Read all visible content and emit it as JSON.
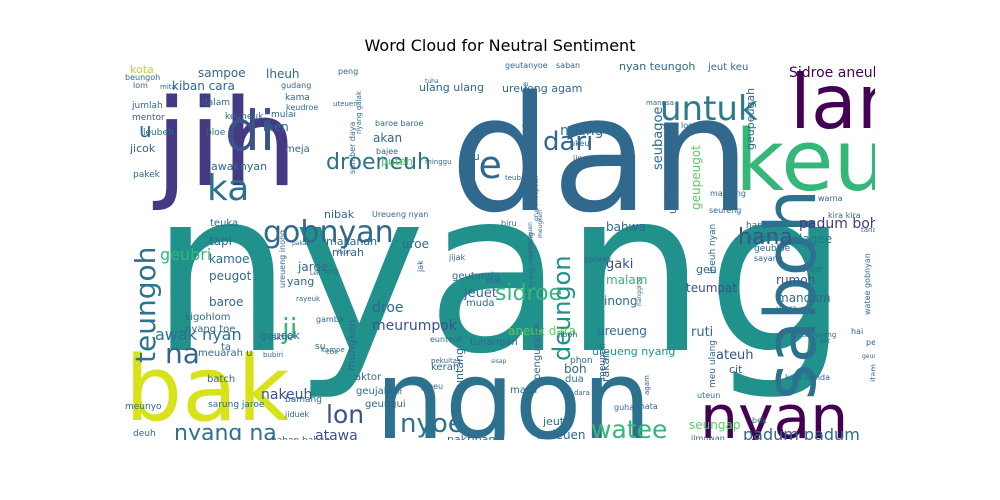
{
  "chart_data": {
    "type": "wordcloud",
    "title": "Word Cloud for Neutral Sentiment",
    "colormap": "viridis",
    "background": "#ffffff",
    "words": [
      {
        "text": "nyang",
        "color": "#21918c"
      },
      {
        "text": "dan",
        "color": "#31688e"
      },
      {
        "text": "jih",
        "color": "#443983"
      },
      {
        "text": "ngon",
        "color": "#2c728e"
      },
      {
        "text": "bak",
        "color": "#d8e219"
      },
      {
        "text": "saboh",
        "color": "#2c728e"
      },
      {
        "text": "keu",
        "color": "#35b779"
      },
      {
        "text": "lam",
        "color": "#440154"
      },
      {
        "text": "nyan",
        "color": "#440154"
      },
      {
        "text": "untuk",
        "color": "#287c8e"
      },
      {
        "text": "di",
        "color": "#3b528b"
      },
      {
        "text": "ka",
        "color": "#2c728e"
      },
      {
        "text": "le",
        "color": "#31688e"
      },
      {
        "text": "gobnyan",
        "color": "#31688e"
      },
      {
        "text": "dari",
        "color": "#31688e"
      },
      {
        "text": "droeneuh",
        "color": "#2c728e"
      },
      {
        "text": "hana",
        "color": "#3b528b"
      },
      {
        "text": "teungoh",
        "color": "#2c728e"
      },
      {
        "text": "deungon",
        "color": "#21918c"
      },
      {
        "text": "sidroe",
        "color": "#35b779"
      },
      {
        "text": "na",
        "color": "#31688e"
      },
      {
        "text": "ji",
        "color": "#35b779"
      },
      {
        "text": "lon",
        "color": "#3b528b"
      },
      {
        "text": "nyoe",
        "color": "#2c728e"
      },
      {
        "text": "watee",
        "color": "#35b779"
      },
      {
        "text": "nyang na",
        "color": "#2c728e"
      },
      {
        "text": "padum boh",
        "color": "#443983"
      },
      {
        "text": "padum padum",
        "color": "#31688e"
      },
      {
        "text": "u",
        "color": "#31688e"
      },
      {
        "text": "awak nyan",
        "color": "#2c728e"
      },
      {
        "text": "atawa",
        "color": "#3b528b"
      },
      {
        "text": "Sidroe aneuk",
        "color": "#440154"
      },
      {
        "text": "nyang ka",
        "color": "#2c728e"
      },
      {
        "text": "geubri",
        "color": "#35b779"
      },
      {
        "text": "tapi",
        "color": "#31688e"
      },
      {
        "text": "kamoe",
        "color": "#31688e"
      },
      {
        "text": "peugot",
        "color": "#31688e"
      },
      {
        "text": "nakeuh",
        "color": "#3b528b"
      },
      {
        "text": "droe",
        "color": "#31688e"
      },
      {
        "text": "meurumpok",
        "color": "#3b528b"
      },
      {
        "text": "jeuet",
        "color": "#31688e"
      },
      {
        "text": "gaki",
        "color": "#3b528b"
      },
      {
        "text": "malam",
        "color": "#35b779"
      },
      {
        "text": "ruti",
        "color": "#31688e"
      },
      {
        "text": "ureueng",
        "color": "#31688e"
      },
      {
        "text": "teumpat",
        "color": "#3b528b"
      },
      {
        "text": "mandum",
        "color": "#31688e"
      },
      {
        "text": "rumoh",
        "color": "#3b528b"
      },
      {
        "text": "lagee",
        "color": "#2c728e"
      },
      {
        "text": "ateuh",
        "color": "#3b528b"
      },
      {
        "text": "cit",
        "color": "#31688e"
      },
      {
        "text": "uroe",
        "color": "#31688e"
      },
      {
        "text": "bahwa",
        "color": "#31688e"
      },
      {
        "text": "inong",
        "color": "#31688e"
      },
      {
        "text": "aneuk dara",
        "color": "#5ec962"
      },
      {
        "text": "ureueng nyang",
        "color": "#21918c"
      },
      {
        "text": "seungap",
        "color": "#5ec962"
      },
      {
        "text": "boh",
        "color": "#31688e"
      },
      {
        "text": "rakan",
        "color": "#31688e"
      },
      {
        "text": "jaroe",
        "color": "#31688e"
      },
      {
        "text": "baroe",
        "color": "#31688e"
      },
      {
        "text": "geucok",
        "color": "#31688e"
      },
      {
        "text": "sampoe",
        "color": "#31688e"
      },
      {
        "text": "kiban cara",
        "color": "#31688e"
      },
      {
        "text": "lheuh",
        "color": "#31688e"
      },
      {
        "text": "laen",
        "color": "#31688e"
      },
      {
        "text": "akan",
        "color": "#31688e"
      },
      {
        "text": "puteh",
        "color": "#5ec962"
      },
      {
        "text": "neu",
        "color": "#31688e"
      },
      {
        "text": "awaknyan",
        "color": "#31688e"
      },
      {
        "text": "makanan",
        "color": "#31688e"
      },
      {
        "text": "nibak",
        "color": "#31688e"
      },
      {
        "text": "mirah",
        "color": "#31688e"
      },
      {
        "text": "yang",
        "color": "#31688e"
      },
      {
        "text": "jicok",
        "color": "#31688e"
      },
      {
        "text": "meja",
        "color": "#31688e"
      },
      {
        "text": "kota",
        "color": "#b5de2b"
      },
      {
        "text": "geupeugot",
        "color": "#5ec962"
      },
      {
        "text": "seubagoe",
        "color": "#31688e"
      },
      {
        "text": "ureueng agam",
        "color": "#31688e"
      },
      {
        "text": "ulang ulang",
        "color": "#31688e"
      },
      {
        "text": "geupeugah",
        "color": "#31688e"
      },
      {
        "text": "nyan teungoh",
        "color": "#31688e"
      },
      {
        "text": "jeut keu",
        "color": "#31688e"
      },
      {
        "text": "teuntang",
        "color": "#31688e"
      },
      {
        "text": "tunangan",
        "color": "#31688e"
      },
      {
        "text": "buleuen",
        "color": "#31688e"
      },
      {
        "text": "jeut",
        "color": "#31688e"
      },
      {
        "text": "pakriban",
        "color": "#31688e"
      },
      {
        "text": "mungken",
        "color": "#31688e"
      },
      {
        "text": "geujak",
        "color": "#31688e"
      },
      {
        "text": "geungui",
        "color": "#31688e"
      },
      {
        "text": "aktor",
        "color": "#31688e"
      },
      {
        "text": "masa",
        "color": "#31688e"
      },
      {
        "text": "pengusaha",
        "color": "#31688e"
      },
      {
        "text": "kerah",
        "color": "#31688e"
      },
      {
        "text": "dua",
        "color": "#31688e"
      },
      {
        "text": "phon",
        "color": "#31688e"
      },
      {
        "text": "meupeh",
        "color": "#31688e"
      },
      {
        "text": "muda",
        "color": "#31688e"
      },
      {
        "text": "geutunda",
        "color": "#31688e"
      },
      {
        "text": "teuka",
        "color": "#31688e"
      },
      {
        "text": "sigohlom",
        "color": "#31688e"
      },
      {
        "text": "nyang toe",
        "color": "#31688e"
      },
      {
        "text": "meuarah u",
        "color": "#31688e"
      },
      {
        "text": "batch",
        "color": "#31688e"
      },
      {
        "text": "ta",
        "color": "#31688e"
      },
      {
        "text": "akhe",
        "color": "#31688e"
      },
      {
        "text": "su",
        "color": "#31688e"
      },
      {
        "text": "gamba",
        "color": "#31688e"
      },
      {
        "text": "sarung jaroe",
        "color": "#31688e"
      },
      {
        "text": "bamang",
        "color": "#31688e"
      },
      {
        "text": "jiduek",
        "color": "#31688e"
      },
      {
        "text": "meunyo",
        "color": "#31688e"
      },
      {
        "text": "deuh",
        "color": "#31688e"
      },
      {
        "text": "bahan bahan",
        "color": "#31688e"
      },
      {
        "text": "jumlah",
        "color": "#31688e"
      },
      {
        "text": "mentor",
        "color": "#31688e"
      },
      {
        "text": "dalam",
        "color": "#31688e"
      },
      {
        "text": "keuneuk",
        "color": "#31688e"
      },
      {
        "text": "mulai",
        "color": "#31688e"
      },
      {
        "text": "kama",
        "color": "#31688e"
      },
      {
        "text": "keudroe",
        "color": "#31688e"
      },
      {
        "text": "leubeh",
        "color": "#31688e"
      },
      {
        "text": "bloe",
        "color": "#31688e"
      },
      {
        "text": "pakek",
        "color": "#31688e"
      },
      {
        "text": "beungoh",
        "color": "#31688e"
      },
      {
        "text": "lom",
        "color": "#31688e"
      },
      {
        "text": "mita",
        "color": "#31688e"
      },
      {
        "text": "gudang",
        "color": "#31688e"
      },
      {
        "text": "peng",
        "color": "#31688e"
      },
      {
        "text": "geutanyoe",
        "color": "#31688e"
      },
      {
        "text": "saban",
        "color": "#31688e"
      },
      {
        "text": "baroe nyoe",
        "color": "#31688e"
      },
      {
        "text": "baroe baroe",
        "color": "#31688e"
      },
      {
        "text": "bajee",
        "color": "#31688e"
      },
      {
        "text": "minggu",
        "color": "#31688e"
      },
      {
        "text": "mangsa",
        "color": "#31688e"
      },
      {
        "text": "loen",
        "color": "#31688e"
      },
      {
        "text": "mantong",
        "color": "#31688e"
      },
      {
        "text": "ukeu",
        "color": "#31688e"
      },
      {
        "text": "jinoe",
        "color": "#31688e"
      },
      {
        "text": "jalan",
        "color": "#31688e"
      },
      {
        "text": "tanaman",
        "color": "#31688e"
      },
      {
        "text": "warna",
        "color": "#31688e"
      },
      {
        "text": "seureng",
        "color": "#31688e"
      },
      {
        "text": "harus",
        "color": "#31688e"
      },
      {
        "text": "bagian",
        "color": "#31688e"
      },
      {
        "text": "geubloe",
        "color": "#31688e"
      },
      {
        "text": "sayang",
        "color": "#31688e"
      },
      {
        "text": "konter",
        "color": "#31688e"
      },
      {
        "text": "utara",
        "color": "#31688e"
      },
      {
        "text": "watee gobnyan",
        "color": "#31688e"
      },
      {
        "text": "hai",
        "color": "#31688e"
      },
      {
        "text": "peuo",
        "color": "#31688e"
      },
      {
        "text": "kata benda",
        "color": "#31688e"
      },
      {
        "text": "itam",
        "color": "#31688e"
      },
      {
        "text": "bek",
        "color": "#31688e"
      },
      {
        "text": "ilmuwan",
        "color": "#31688e"
      },
      {
        "text": "meunan cit",
        "color": "#31688e"
      },
      {
        "text": "guha",
        "color": "#31688e"
      },
      {
        "text": "mata",
        "color": "#31688e"
      },
      {
        "text": "agam",
        "color": "#31688e"
      },
      {
        "text": "uteun",
        "color": "#31688e"
      },
      {
        "text": "kira kira",
        "color": "#31688e"
      },
      {
        "text": "pabrek",
        "color": "#31688e"
      },
      {
        "text": "biru",
        "color": "#31688e"
      },
      {
        "text": "jijak",
        "color": "#31688e"
      },
      {
        "text": "jak",
        "color": "#31688e"
      },
      {
        "text": "thon",
        "color": "#31688e"
      },
      {
        "text": "nyang manyang",
        "color": "#31688e"
      },
      {
        "text": "ureueng inong",
        "color": "#31688e"
      },
      {
        "text": "rayeuk",
        "color": "#31688e"
      },
      {
        "text": "eunteuk",
        "color": "#31688e"
      },
      {
        "text": "bubiri",
        "color": "#31688e"
      },
      {
        "text": "sumber daya",
        "color": "#31688e"
      },
      {
        "text": "nyang galak",
        "color": "#31688e"
      },
      {
        "text": "Ureueng nyan",
        "color": "#31688e"
      },
      {
        "text": "meu ulang",
        "color": "#31688e"
      },
      {
        "text": "jiboh",
        "color": "#31688e"
      },
      {
        "text": "geu",
        "color": "#31688e"
      },
      {
        "text": "lheuh nyan",
        "color": "#31688e"
      },
      {
        "text": "ureung",
        "color": "#31688e"
      },
      {
        "text": "teubai",
        "color": "#31688e"
      },
      {
        "text": "kamoe",
        "color": "#31688e"
      },
      {
        "text": "uteuen",
        "color": "#31688e"
      },
      {
        "text": "geulinyueng",
        "color": "#31688e"
      },
      {
        "text": "gruputteupeun",
        "color": "#31688e"
      },
      {
        "text": "pulotupeuen",
        "color": "#31688e"
      },
      {
        "text": "meugkeh",
        "color": "#31688e"
      },
      {
        "text": "lhon",
        "color": "#31688e"
      },
      {
        "text": "nanggroe",
        "color": "#31688e"
      },
      {
        "text": "ikot",
        "color": "#31688e"
      },
      {
        "text": "dara",
        "color": "#31688e"
      },
      {
        "text": "laoet",
        "color": "#31688e"
      },
      {
        "text": "pekuitas",
        "color": "#31688e"
      },
      {
        "text": "ji peu",
        "color": "#31688e"
      },
      {
        "text": "sisap",
        "color": "#31688e"
      },
      {
        "text": "pakan",
        "color": "#31688e"
      },
      {
        "text": "tuha",
        "color": "#31688e"
      },
      {
        "text": "tang",
        "color": "#31688e"
      },
      {
        "text": "Leh",
        "color": "#31688e"
      },
      {
        "text": "geusaran",
        "color": "#31688e"
      },
      {
        "text": "cok",
        "color": "#31688e"
      }
    ]
  }
}
